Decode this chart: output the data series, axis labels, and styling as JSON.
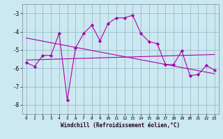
{
  "xlabel": "Windchill (Refroidissement éolien,°C)",
  "bg_color": "#cce8f0",
  "line_color": "#aa00aa",
  "grid_color": "#99bbcc",
  "xmin": -0.5,
  "xmax": 23.5,
  "ymin": -8.5,
  "ymax": -2.5,
  "yticks": [
    -8,
    -7,
    -6,
    -5,
    -4,
    -3
  ],
  "xticks": [
    0,
    1,
    2,
    3,
    4,
    5,
    6,
    7,
    8,
    9,
    10,
    11,
    12,
    13,
    14,
    15,
    16,
    17,
    18,
    19,
    20,
    21,
    22,
    23
  ],
  "series1_x": [
    0,
    1,
    2,
    3,
    4,
    5,
    6,
    7,
    8,
    9,
    10,
    11,
    12,
    13,
    14,
    15,
    16,
    17,
    18,
    19,
    20,
    21,
    22,
    23
  ],
  "series1_y": [
    -5.7,
    -5.9,
    -5.3,
    -5.3,
    -4.1,
    -7.75,
    -4.9,
    -4.1,
    -3.65,
    -4.5,
    -3.55,
    -3.25,
    -3.25,
    -3.1,
    -4.1,
    -4.55,
    -4.65,
    -5.8,
    -5.8,
    -5.05,
    -6.4,
    -6.35,
    -5.85,
    -6.1
  ],
  "trend1_x": [
    0,
    23
  ],
  "trend1_y": [
    -4.35,
    -6.3
  ],
  "trend2_x": [
    0,
    23
  ],
  "trend2_y": [
    -5.55,
    -5.25
  ]
}
